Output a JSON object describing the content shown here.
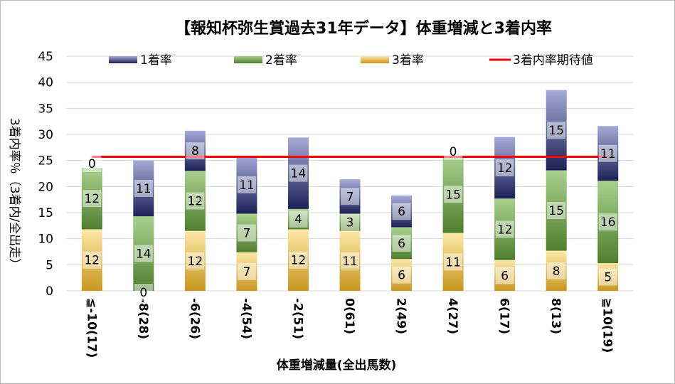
{
  "chart_data": {
    "type": "bar",
    "stacked": true,
    "title": "【報知杯弥生賞過去31年データ】体重増減と3着内率",
    "xlabel": "体重増減量(全出馬数)",
    "ylabel": "3着内率％（3着内/全出走）",
    "ylim": [
      0,
      45
    ],
    "yticks": [
      0,
      5,
      10,
      15,
      20,
      25,
      30,
      35,
      40,
      45
    ],
    "grid": true,
    "legend_position": "top",
    "categories": [
      "≦-10(17)",
      "-8(28)",
      "-6(26)",
      "-4(54)",
      "-2(51)",
      "0(61)",
      "2(49)",
      "4(27)",
      "6(17)",
      "8(13)",
      "≧10(19)"
    ],
    "series": [
      {
        "name": "3着率",
        "colors": [
          "#fde9a8",
          "#c9971e"
        ],
        "values": [
          11.8,
          0,
          11.5,
          7.4,
          11.8,
          11.5,
          6.1,
          11.1,
          5.9,
          7.7,
          5.3
        ],
        "labels": [
          "12",
          "0",
          "12",
          "7",
          "12",
          "11",
          "6",
          "11",
          "6",
          "8",
          "5"
        ]
      },
      {
        "name": "2着率",
        "colors": [
          "#a9d18e",
          "#4f7f2e"
        ],
        "values": [
          11.8,
          14.3,
          11.5,
          7.4,
          3.9,
          3.3,
          6.1,
          14.8,
          11.8,
          15.4,
          15.8
        ],
        "labels": [
          "12",
          "14",
          "12",
          "7",
          "4",
          "3",
          "6",
          "15",
          "12",
          "15",
          "16"
        ]
      },
      {
        "name": "1着率",
        "colors": [
          "#a5aad9",
          "#1c2257"
        ],
        "values": [
          0,
          10.7,
          7.7,
          11.1,
          13.7,
          6.6,
          6.1,
          0,
          11.8,
          15.4,
          10.5
        ],
        "labels": [
          "0",
          "11",
          "8",
          "11",
          "14",
          "7",
          "6",
          "0",
          "12",
          "15",
          "11"
        ]
      }
    ],
    "reference_line": {
      "name": "3着内率期待値",
      "value": 25.7,
      "color": "#ff0000"
    }
  }
}
